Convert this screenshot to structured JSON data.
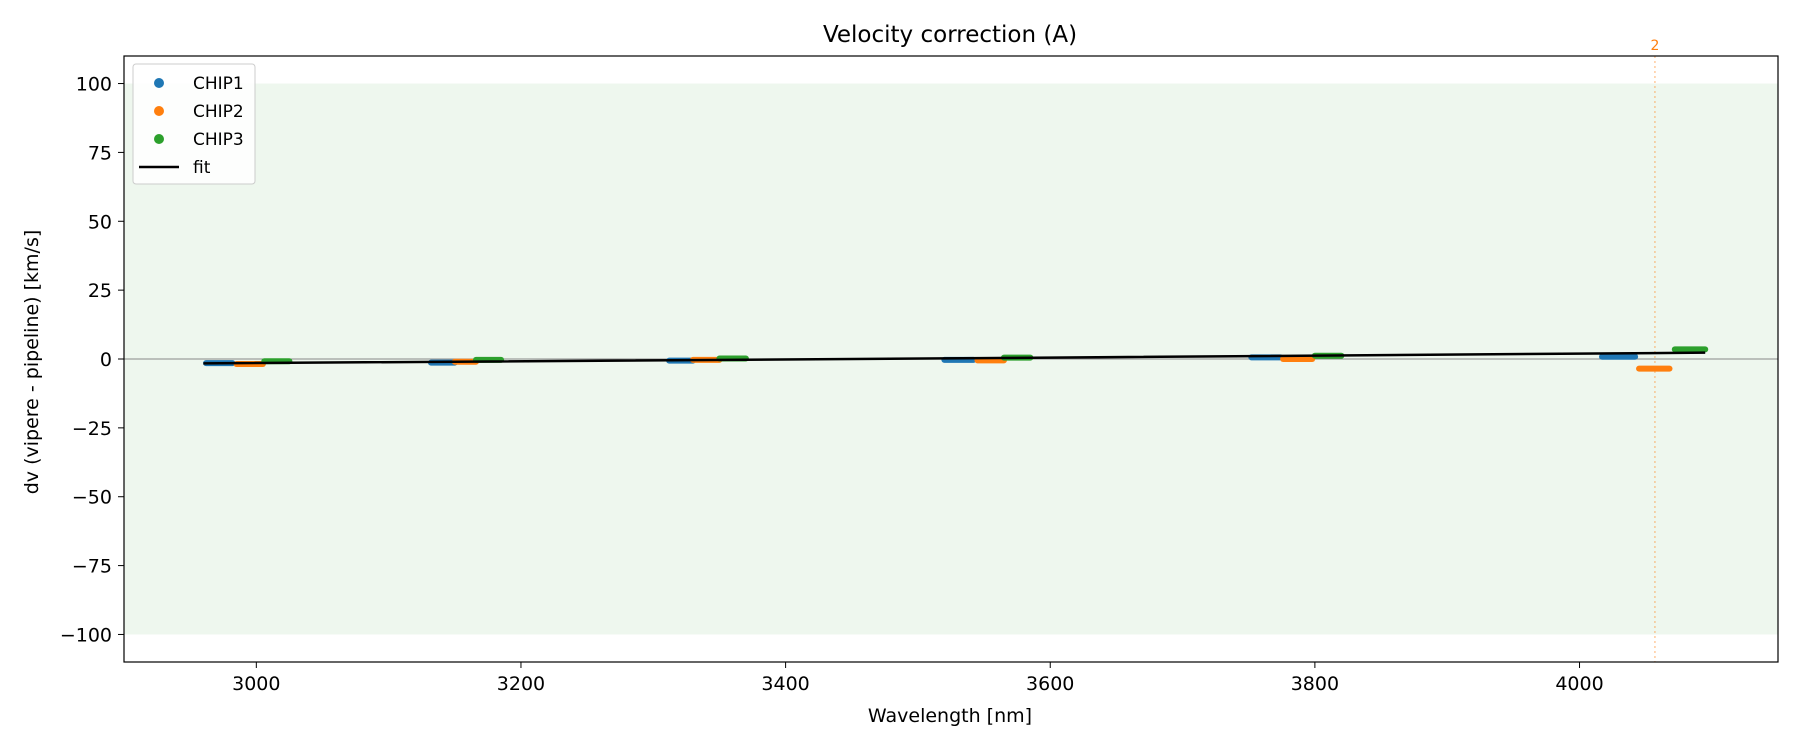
{
  "chart_data": {
    "type": "scatter",
    "title": "Velocity correction (A)",
    "xlabel": "Wavelength [nm]",
    "ylabel": "dv (vipere - pipeline) [km/s]",
    "xlim": [
      2900,
      4150
    ],
    "ylim": [
      -110,
      110
    ],
    "xticks": [
      3000,
      3200,
      3400,
      3600,
      3800,
      4000
    ],
    "yticks": [
      100,
      75,
      50,
      25,
      0,
      -25,
      -50,
      -75,
      -100
    ],
    "ytick_labels": [
      "100",
      "75",
      "50",
      "25",
      "0",
      "−25",
      "−50",
      "−75",
      "−100"
    ],
    "shaded_band": [
      -100,
      100
    ],
    "shaded_color": "#eef7ee",
    "zero_line": 0,
    "grid": false,
    "legend_position": "top-left",
    "series": [
      {
        "name": "CHIP1",
        "color": "#1f77b4",
        "segments": [
          {
            "x0": 2962,
            "x1": 2982,
            "y": -1.5
          },
          {
            "x0": 3132,
            "x1": 3150,
            "y": -1.3
          },
          {
            "x0": 3312,
            "x1": 3330,
            "y": -0.6
          },
          {
            "x0": 3520,
            "x1": 3542,
            "y": -0.3
          },
          {
            "x0": 3752,
            "x1": 3774,
            "y": 0.6
          },
          {
            "x0": 4017,
            "x1": 4042,
            "y": 0.8
          }
        ]
      },
      {
        "name": "CHIP2",
        "color": "#ff7f0e",
        "segments": [
          {
            "x0": 2985,
            "x1": 3005,
            "y": -1.8
          },
          {
            "x0": 3150,
            "x1": 3166,
            "y": -1.0
          },
          {
            "x0": 3330,
            "x1": 3350,
            "y": -0.3
          },
          {
            "x0": 3545,
            "x1": 3565,
            "y": -0.5
          },
          {
            "x0": 3776,
            "x1": 3798,
            "y": 0.0
          },
          {
            "x0": 4045,
            "x1": 4068,
            "y": -3.5
          }
        ]
      },
      {
        "name": "CHIP3",
        "color": "#2ca02c",
        "segments": [
          {
            "x0": 3006,
            "x1": 3025,
            "y": -0.8
          },
          {
            "x0": 3166,
            "x1": 3185,
            "y": -0.3
          },
          {
            "x0": 3350,
            "x1": 3370,
            "y": 0.2
          },
          {
            "x0": 3565,
            "x1": 3585,
            "y": 0.5
          },
          {
            "x0": 3800,
            "x1": 3820,
            "y": 1.2
          },
          {
            "x0": 4072,
            "x1": 4095,
            "y": 3.5
          }
        ]
      }
    ],
    "fit": {
      "name": "fit",
      "color": "#000000",
      "points": [
        [
          2960,
          -1.6
        ],
        [
          3600,
          0.5
        ],
        [
          4095,
          2.3
        ]
      ]
    },
    "annotations": [
      {
        "text": "2",
        "x": 4057,
        "color": "#ff7f0e"
      }
    ]
  }
}
